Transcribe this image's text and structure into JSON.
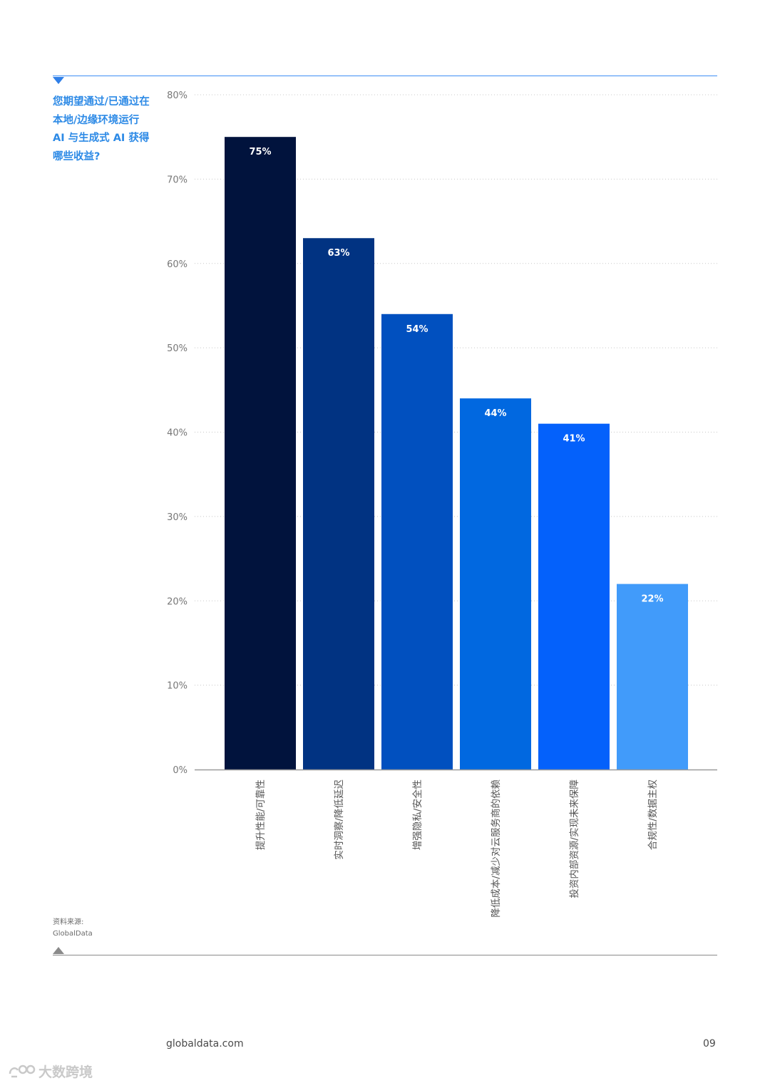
{
  "question": "您期望通过/已通过在本地/边缘环境运行 AI 与生成式 AI 获得哪些收益?",
  "source": {
    "label": "资料来源:",
    "name": "GlobalData"
  },
  "footer": {
    "url": "globaldata.com",
    "page": "09"
  },
  "watermark": {
    "icon": "logo-icon",
    "text": "大数跨境"
  },
  "colors": {
    "accent": "#2d8ae6",
    "rule_top": "#3d8ef5",
    "rule_bottom": "#8a8a8a"
  },
  "chart_data": {
    "type": "bar",
    "categories": [
      "提升性能/可靠性",
      "实时洞察/降低延迟",
      "增强隐私/安全性",
      "降低成本/减少对云服务商的依赖",
      "投资内部资源/实现未来保障",
      "合规性/数据主权"
    ],
    "values": [
      75,
      63,
      54,
      44,
      41,
      22
    ],
    "value_labels": [
      "75%",
      "63%",
      "54%",
      "44%",
      "41%",
      "22%"
    ],
    "colors": [
      "#01133d",
      "#013382",
      "#0150bf",
      "#0168e0",
      "#0461fb",
      "#419bfa"
    ],
    "ylim": [
      0,
      80
    ],
    "yticks": [
      0,
      10,
      20,
      30,
      40,
      50,
      60,
      70,
      80
    ],
    "ytick_labels": [
      "0%",
      "10%",
      "20%",
      "30%",
      "40%",
      "50%",
      "60%",
      "70%",
      "80%"
    ],
    "grid": true,
    "legend": "none"
  }
}
